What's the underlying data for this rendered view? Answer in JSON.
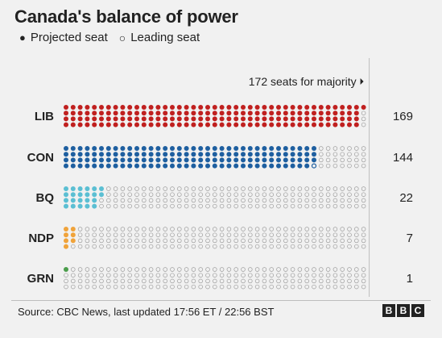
{
  "title": "Canada's balance of power",
  "legend": {
    "projected": "Projected seat",
    "leading": "Leading seat"
  },
  "majority_label": "172 seats for majority",
  "source": "Source: CBC News,  last updated 17:56 ET / 22:56 BST",
  "logo": [
    "B",
    "B",
    "C"
  ],
  "colors": {
    "LIB": "#c0201f",
    "CON": "#1e5fa0",
    "BQ": "#5bbfd3",
    "NDP": "#f0a33a",
    "GRN": "#4a9d4b",
    "empty": "#9b9b9b"
  },
  "chart_data": {
    "type": "waffle",
    "total_per_row_dots": 172,
    "series": [
      {
        "name": "LIB",
        "projected": 169,
        "leading": 0,
        "label": "169"
      },
      {
        "name": "CON",
        "projected": 143,
        "leading": 1,
        "label": "144"
      },
      {
        "name": "BQ",
        "projected": 22,
        "leading": 0,
        "label": "22"
      },
      {
        "name": "NDP",
        "projected": 7,
        "leading": 0,
        "label": "7"
      },
      {
        "name": "GRN",
        "projected": 1,
        "leading": 0,
        "label": "1"
      }
    ]
  }
}
